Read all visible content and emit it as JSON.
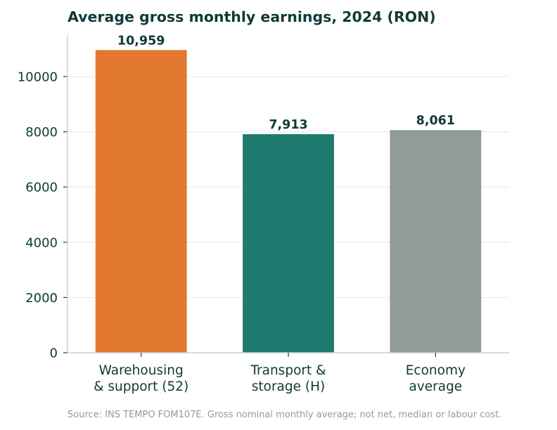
{
  "chart_data": {
    "type": "bar",
    "title": "Average gross monthly earnings, 2024 (RON)",
    "xlabel": "",
    "ylabel": "",
    "ylim": [
      0,
      11500
    ],
    "yticks": [
      0,
      2000,
      4000,
      6000,
      8000,
      10000
    ],
    "grid": true,
    "categories": [
      [
        "Warehousing",
        "& support (52)"
      ],
      [
        "Transport &",
        "storage (H)"
      ],
      [
        "Economy",
        "average"
      ]
    ],
    "values": [
      10959,
      7913,
      8061
    ],
    "value_labels": [
      "10,959",
      "7,913",
      "8,061"
    ],
    "colors": [
      "#e2782f",
      "#1f7a70",
      "#919c98"
    ]
  },
  "footer": {
    "source": "Source: INS TEMPO FOM107E. Gross nominal monthly average; not net, median or labour cost."
  }
}
